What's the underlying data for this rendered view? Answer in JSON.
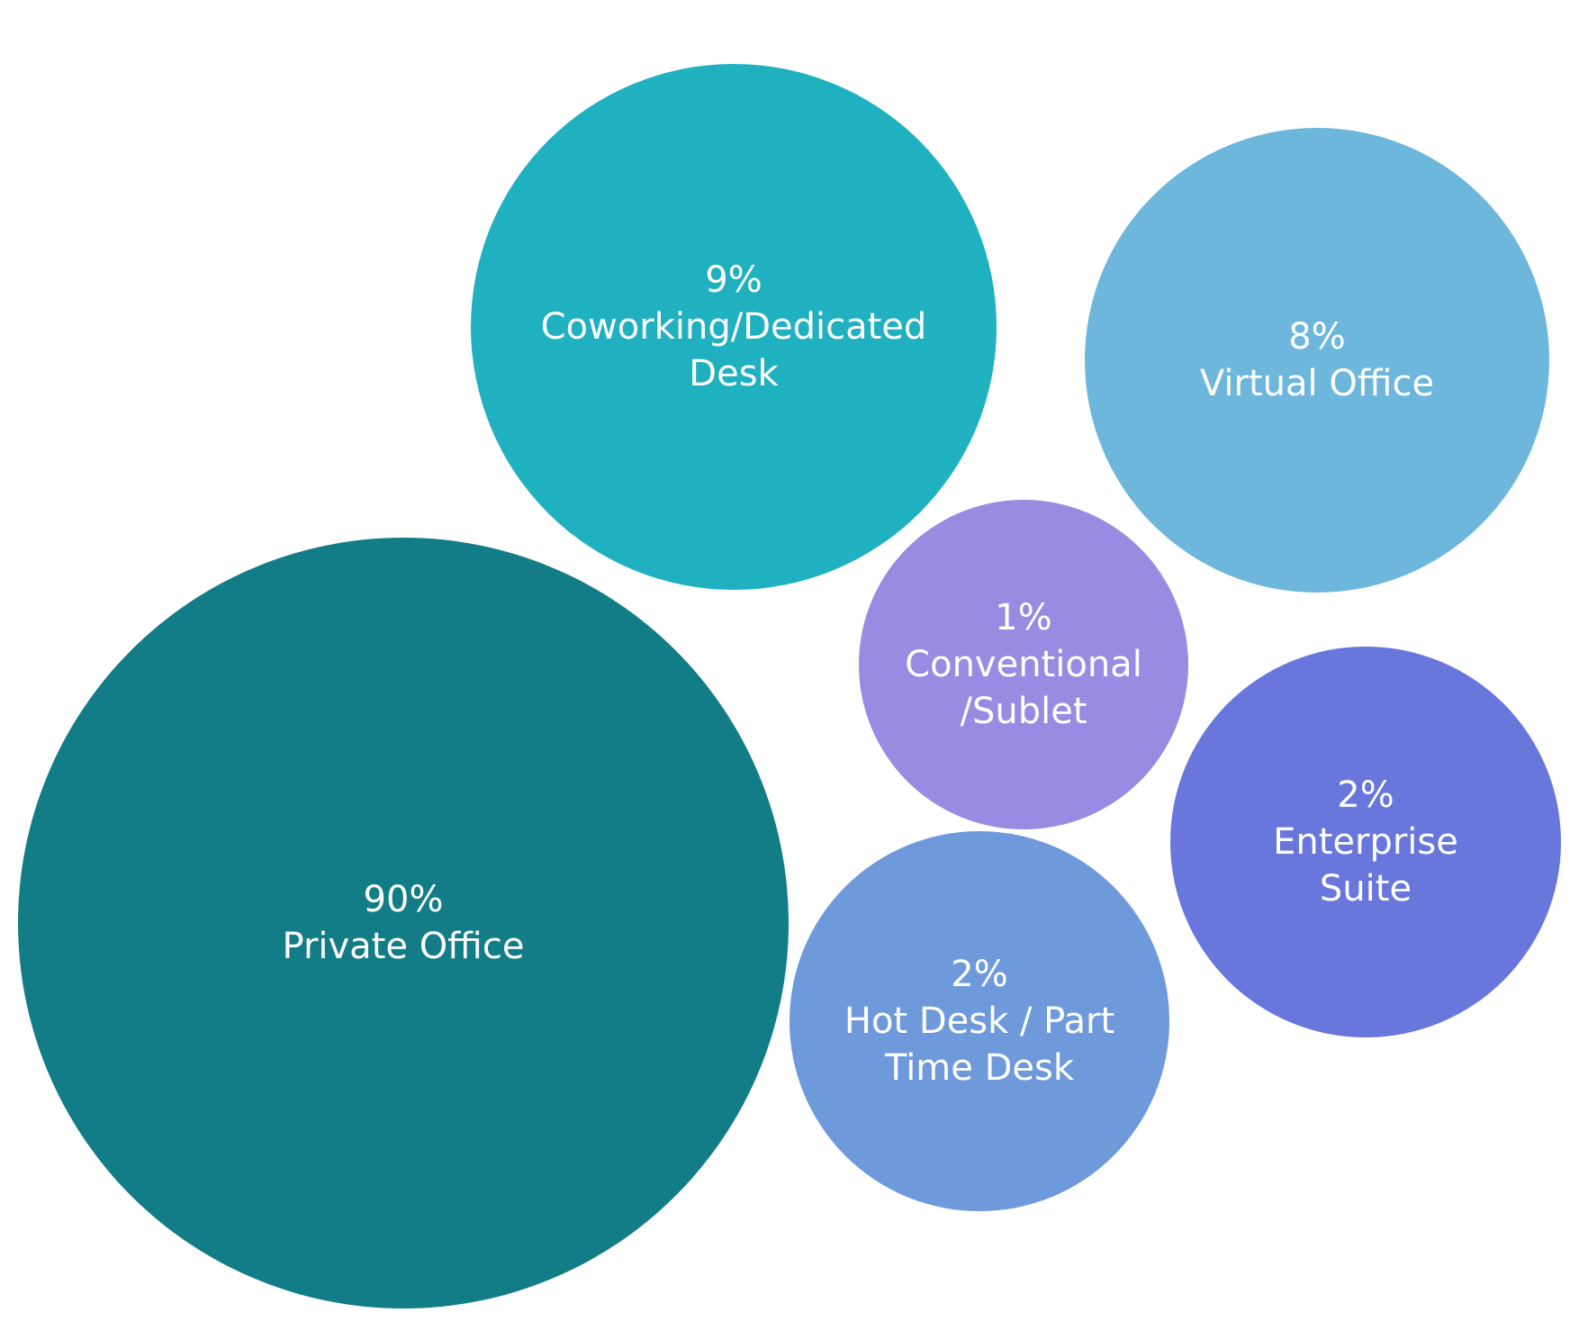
{
  "chart_data": {
    "type": "bubble",
    "title": "",
    "legend": "none",
    "grid": false,
    "items": [
      {
        "value": "90%",
        "label": [
          "Private Office"
        ],
        "color": "#137D87"
      },
      {
        "value": "9%",
        "label": [
          "Coworking/Dedicated",
          "Desk"
        ],
        "color": "#1FB1C0"
      },
      {
        "value": "8%",
        "label": [
          "Virtual Office"
        ],
        "color": "#6DB7DD"
      },
      {
        "value": "1%",
        "label": [
          "Conventional",
          "/Sublet"
        ],
        "color": "#9A8BE2"
      },
      {
        "value": "2%",
        "label": [
          "Enterprise",
          "Suite"
        ],
        "color": "#6976DC"
      },
      {
        "value": "2%",
        "label": [
          "Hot Desk / Part",
          "Time Desk"
        ],
        "color": "#6E9ADB"
      }
    ]
  }
}
